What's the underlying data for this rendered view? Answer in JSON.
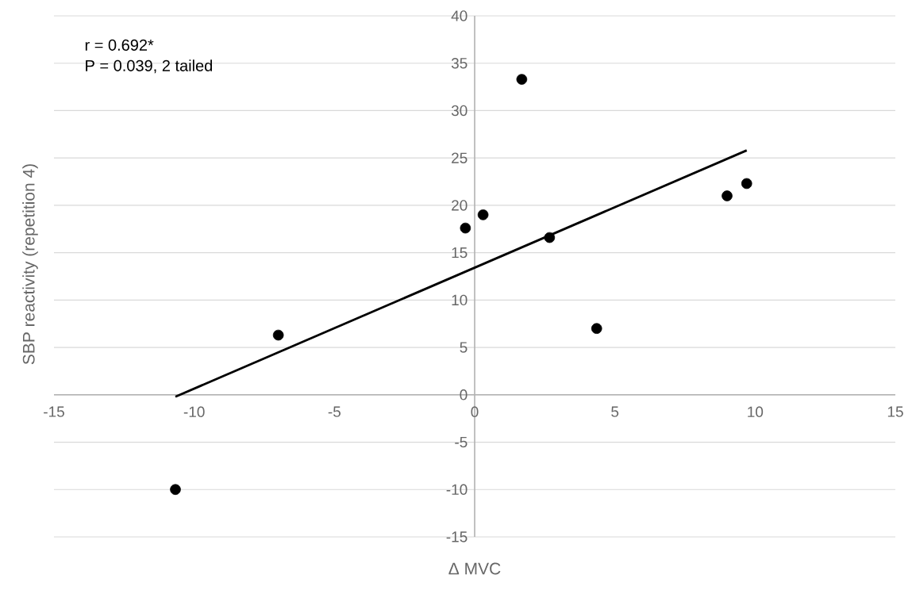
{
  "chart_data": {
    "type": "scatter",
    "xlabel": "Δ MVC",
    "ylabel": "SBP reactivity (repetition 4)",
    "annotations": [
      "r = 0.692*",
      "P = 0.039, 2 tailed"
    ],
    "xlim": [
      -15,
      15
    ],
    "xticks": [
      -15,
      -10,
      -5,
      0,
      5,
      10,
      15
    ],
    "ylim": [
      -15,
      40
    ],
    "yticks": [
      -15,
      -10,
      -5,
      0,
      5,
      10,
      15,
      20,
      25,
      30,
      35,
      40
    ],
    "grid": "y",
    "series": [
      {
        "marker": "circle",
        "color": "#000000",
        "x": [
          -10.67,
          -7.0,
          -0.33,
          0.3,
          1.68,
          2.67,
          4.35,
          9.0,
          9.7
        ],
        "values": [
          -10.0,
          6.3,
          17.6,
          19.0,
          33.3,
          16.6,
          7.0,
          21.0,
          22.3
        ]
      },
      {
        "type": "line",
        "marker": "none",
        "color": "#000000",
        "x": [
          -10.67,
          9.7
        ],
        "values": [
          -0.2,
          25.8
        ]
      }
    ]
  }
}
